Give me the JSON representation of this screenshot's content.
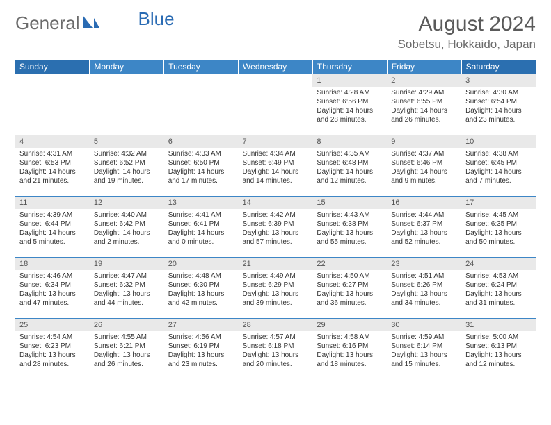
{
  "brand": {
    "word1": "General",
    "word2": "Blue"
  },
  "colors": {
    "header_bg": "#3d86c6",
    "header_weekend_bg": "#2b6fb0",
    "header_text": "#ffffff",
    "row_divider": "#3d86c6",
    "daynum_bg": "#e9e9e9",
    "text": "#333333",
    "brand_gray": "#6b6b6b",
    "brand_blue": "#2a6bb3"
  },
  "title": "August 2024",
  "location": "Sobetsu, Hokkaido, Japan",
  "weekdays": [
    "Sunday",
    "Monday",
    "Tuesday",
    "Wednesday",
    "Thursday",
    "Friday",
    "Saturday"
  ],
  "weeks": [
    [
      {
        "n": "",
        "sr": "",
        "ss": "",
        "dl": ""
      },
      {
        "n": "",
        "sr": "",
        "ss": "",
        "dl": ""
      },
      {
        "n": "",
        "sr": "",
        "ss": "",
        "dl": ""
      },
      {
        "n": "",
        "sr": "",
        "ss": "",
        "dl": ""
      },
      {
        "n": "1",
        "sr": "Sunrise: 4:28 AM",
        "ss": "Sunset: 6:56 PM",
        "dl": "Daylight: 14 hours and 28 minutes."
      },
      {
        "n": "2",
        "sr": "Sunrise: 4:29 AM",
        "ss": "Sunset: 6:55 PM",
        "dl": "Daylight: 14 hours and 26 minutes."
      },
      {
        "n": "3",
        "sr": "Sunrise: 4:30 AM",
        "ss": "Sunset: 6:54 PM",
        "dl": "Daylight: 14 hours and 23 minutes."
      }
    ],
    [
      {
        "n": "4",
        "sr": "Sunrise: 4:31 AM",
        "ss": "Sunset: 6:53 PM",
        "dl": "Daylight: 14 hours and 21 minutes."
      },
      {
        "n": "5",
        "sr": "Sunrise: 4:32 AM",
        "ss": "Sunset: 6:52 PM",
        "dl": "Daylight: 14 hours and 19 minutes."
      },
      {
        "n": "6",
        "sr": "Sunrise: 4:33 AM",
        "ss": "Sunset: 6:50 PM",
        "dl": "Daylight: 14 hours and 17 minutes."
      },
      {
        "n": "7",
        "sr": "Sunrise: 4:34 AM",
        "ss": "Sunset: 6:49 PM",
        "dl": "Daylight: 14 hours and 14 minutes."
      },
      {
        "n": "8",
        "sr": "Sunrise: 4:35 AM",
        "ss": "Sunset: 6:48 PM",
        "dl": "Daylight: 14 hours and 12 minutes."
      },
      {
        "n": "9",
        "sr": "Sunrise: 4:37 AM",
        "ss": "Sunset: 6:46 PM",
        "dl": "Daylight: 14 hours and 9 minutes."
      },
      {
        "n": "10",
        "sr": "Sunrise: 4:38 AM",
        "ss": "Sunset: 6:45 PM",
        "dl": "Daylight: 14 hours and 7 minutes."
      }
    ],
    [
      {
        "n": "11",
        "sr": "Sunrise: 4:39 AM",
        "ss": "Sunset: 6:44 PM",
        "dl": "Daylight: 14 hours and 5 minutes."
      },
      {
        "n": "12",
        "sr": "Sunrise: 4:40 AM",
        "ss": "Sunset: 6:42 PM",
        "dl": "Daylight: 14 hours and 2 minutes."
      },
      {
        "n": "13",
        "sr": "Sunrise: 4:41 AM",
        "ss": "Sunset: 6:41 PM",
        "dl": "Daylight: 14 hours and 0 minutes."
      },
      {
        "n": "14",
        "sr": "Sunrise: 4:42 AM",
        "ss": "Sunset: 6:39 PM",
        "dl": "Daylight: 13 hours and 57 minutes."
      },
      {
        "n": "15",
        "sr": "Sunrise: 4:43 AM",
        "ss": "Sunset: 6:38 PM",
        "dl": "Daylight: 13 hours and 55 minutes."
      },
      {
        "n": "16",
        "sr": "Sunrise: 4:44 AM",
        "ss": "Sunset: 6:37 PM",
        "dl": "Daylight: 13 hours and 52 minutes."
      },
      {
        "n": "17",
        "sr": "Sunrise: 4:45 AM",
        "ss": "Sunset: 6:35 PM",
        "dl": "Daylight: 13 hours and 50 minutes."
      }
    ],
    [
      {
        "n": "18",
        "sr": "Sunrise: 4:46 AM",
        "ss": "Sunset: 6:34 PM",
        "dl": "Daylight: 13 hours and 47 minutes."
      },
      {
        "n": "19",
        "sr": "Sunrise: 4:47 AM",
        "ss": "Sunset: 6:32 PM",
        "dl": "Daylight: 13 hours and 44 minutes."
      },
      {
        "n": "20",
        "sr": "Sunrise: 4:48 AM",
        "ss": "Sunset: 6:30 PM",
        "dl": "Daylight: 13 hours and 42 minutes."
      },
      {
        "n": "21",
        "sr": "Sunrise: 4:49 AM",
        "ss": "Sunset: 6:29 PM",
        "dl": "Daylight: 13 hours and 39 minutes."
      },
      {
        "n": "22",
        "sr": "Sunrise: 4:50 AM",
        "ss": "Sunset: 6:27 PM",
        "dl": "Daylight: 13 hours and 36 minutes."
      },
      {
        "n": "23",
        "sr": "Sunrise: 4:51 AM",
        "ss": "Sunset: 6:26 PM",
        "dl": "Daylight: 13 hours and 34 minutes."
      },
      {
        "n": "24",
        "sr": "Sunrise: 4:53 AM",
        "ss": "Sunset: 6:24 PM",
        "dl": "Daylight: 13 hours and 31 minutes."
      }
    ],
    [
      {
        "n": "25",
        "sr": "Sunrise: 4:54 AM",
        "ss": "Sunset: 6:23 PM",
        "dl": "Daylight: 13 hours and 28 minutes."
      },
      {
        "n": "26",
        "sr": "Sunrise: 4:55 AM",
        "ss": "Sunset: 6:21 PM",
        "dl": "Daylight: 13 hours and 26 minutes."
      },
      {
        "n": "27",
        "sr": "Sunrise: 4:56 AM",
        "ss": "Sunset: 6:19 PM",
        "dl": "Daylight: 13 hours and 23 minutes."
      },
      {
        "n": "28",
        "sr": "Sunrise: 4:57 AM",
        "ss": "Sunset: 6:18 PM",
        "dl": "Daylight: 13 hours and 20 minutes."
      },
      {
        "n": "29",
        "sr": "Sunrise: 4:58 AM",
        "ss": "Sunset: 6:16 PM",
        "dl": "Daylight: 13 hours and 18 minutes."
      },
      {
        "n": "30",
        "sr": "Sunrise: 4:59 AM",
        "ss": "Sunset: 6:14 PM",
        "dl": "Daylight: 13 hours and 15 minutes."
      },
      {
        "n": "31",
        "sr": "Sunrise: 5:00 AM",
        "ss": "Sunset: 6:13 PM",
        "dl": "Daylight: 13 hours and 12 minutes."
      }
    ]
  ]
}
